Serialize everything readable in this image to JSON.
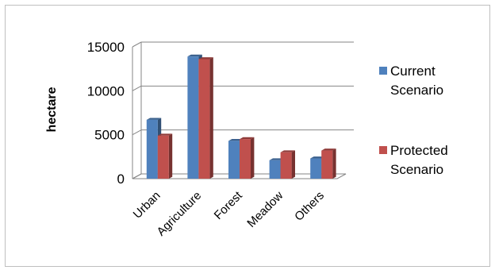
{
  "chart_data": {
    "type": "bar",
    "categories": [
      "Urban",
      "Agriculture",
      "Forest",
      "Meadow",
      "Others"
    ],
    "series": [
      {
        "name": "Current Scenario",
        "legend_lines": [
          "Current",
          "Scenario"
        ],
        "values": [
          6700,
          13900,
          4300,
          2100,
          2300
        ],
        "color": "#4f81bd"
      },
      {
        "name": "Protected Scenario",
        "legend_lines": [
          "Protected",
          "Scenario"
        ],
        "values": [
          4900,
          13600,
          4500,
          3000,
          3200
        ],
        "color": "#c0504d"
      }
    ],
    "ylabel": "hectare",
    "ylim": [
      0,
      15000
    ],
    "yticks": [
      0,
      5000,
      10000,
      15000
    ],
    "ytick_labels": [
      "0",
      "5000",
      "10000",
      "15000"
    ],
    "grid": true,
    "legend_position": "right",
    "style": "3d-clustered-column"
  }
}
